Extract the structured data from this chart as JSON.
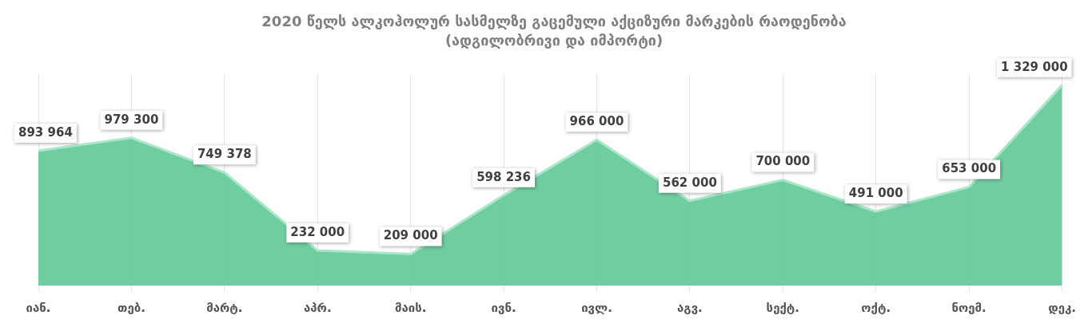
{
  "chart_data": {
    "type": "area",
    "title": "2020 წელს ალკოჰოლურ სასმელზე გაცემული აქციზური მარკების რაოდენობა",
    "subtitle": "(ადგილობრივი და იმპორტი)",
    "categories": [
      "იან.",
      "თებ.",
      "მარტ.",
      "აპრ.",
      "მაის.",
      "ივნ.",
      "ივლ.",
      "აგვ.",
      "სექტ.",
      "ოქტ.",
      "ნოემ.",
      "დეკ."
    ],
    "series": [
      {
        "color": "#5cc594",
        "values": [
          893964,
          979300,
          749378,
          232000,
          209000,
          598236,
          966000,
          562000,
          700000,
          491000,
          653000,
          1329000
        ],
        "value_labels": [
          "893 964",
          "979 300",
          "749 378",
          "232 000",
          "209 000",
          "598 236",
          "966 000",
          "562 000",
          "700 000",
          "491 000",
          "653 000",
          "1 329 000"
        ]
      }
    ],
    "grid": "x",
    "legend": false,
    "data_labels": true
  }
}
